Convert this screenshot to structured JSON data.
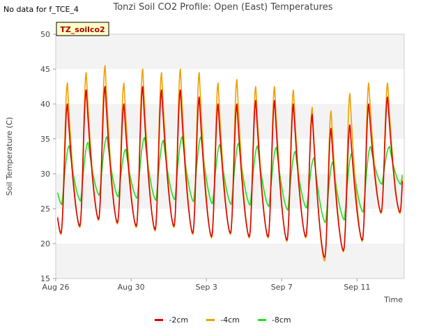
{
  "header": {
    "note": "No data for f_TCE_4",
    "title": "Tonzi Soil CO2 Profile: Open (East) Temperatures",
    "badge": "TZ_soilco2"
  },
  "chart_data": {
    "type": "line",
    "title": "Tonzi Soil CO2 Profile: Open (East) Temperatures",
    "xlabel": "Time",
    "ylabel": "Soil Temperature (C)",
    "ylim": [
      15,
      50
    ],
    "yticks": [
      15,
      20,
      25,
      30,
      35,
      40,
      45,
      50
    ],
    "xlim": [
      "2023-08-26",
      "2023-09-13 12:00"
    ],
    "xticks": [
      {
        "label": "Aug 26",
        "date": "2023-08-26"
      },
      {
        "label": "Aug 30",
        "date": "2023-08-30"
      },
      {
        "label": "Sep 3",
        "date": "2023-09-03"
      },
      {
        "label": "Sep 7",
        "date": "2023-09-07"
      },
      {
        "label": "Sep 11",
        "date": "2023-09-11"
      }
    ],
    "grid": "alternating horizontal bands",
    "legend_position": "bottom",
    "days": [
      "Aug 26",
      "Aug 27",
      "Aug 28",
      "Aug 29",
      "Aug 30",
      "Aug 31",
      "Sep 1",
      "Sep 2",
      "Sep 3",
      "Sep 4",
      "Sep 5",
      "Sep 6",
      "Sep 7",
      "Sep 8",
      "Sep 9",
      "Sep 10",
      "Sep 11",
      "Sep 12"
    ],
    "series": [
      {
        "name": "-2cm",
        "color": "#dd0000",
        "daily_max": [
          40.0,
          42.0,
          42.5,
          40.0,
          42.5,
          42.0,
          42.0,
          41.0,
          40.0,
          40.0,
          40.5,
          40.5,
          40.0,
          38.5,
          36.5,
          37.0,
          40.0,
          41.0
        ],
        "daily_min": [
          21.5,
          22.5,
          23.5,
          23.0,
          22.5,
          22.0,
          22.5,
          21.5,
          21.0,
          21.5,
          21.0,
          21.0,
          20.5,
          21.0,
          18.0,
          19.0,
          20.5,
          24.5
        ]
      },
      {
        "name": "-4cm",
        "color": "#f0a000",
        "daily_max": [
          43.0,
          44.5,
          45.5,
          43.0,
          45.0,
          44.5,
          45.0,
          44.5,
          43.0,
          43.5,
          42.5,
          42.5,
          42.0,
          39.5,
          39.0,
          41.5,
          43.0,
          43.0
        ],
        "daily_min": [
          21.3,
          22.3,
          23.3,
          22.8,
          22.3,
          21.8,
          22.3,
          21.3,
          20.8,
          21.3,
          20.8,
          20.8,
          20.3,
          20.8,
          17.5,
          18.8,
          20.3,
          24.3
        ]
      },
      {
        "name": "-8cm",
        "color": "#22dd22",
        "daily_max": [
          34.0,
          34.5,
          35.3,
          33.5,
          35.2,
          34.8,
          35.3,
          35.3,
          34.2,
          34.4,
          34.0,
          33.8,
          33.2,
          32.3,
          31.7,
          32.9,
          33.9,
          33.9
        ],
        "daily_min": [
          25.6,
          26.1,
          26.9,
          26.7,
          26.5,
          26.2,
          26.3,
          26.0,
          25.7,
          25.6,
          25.5,
          25.3,
          24.8,
          25.1,
          23.0,
          23.4,
          24.5,
          28.5
        ]
      }
    ]
  }
}
